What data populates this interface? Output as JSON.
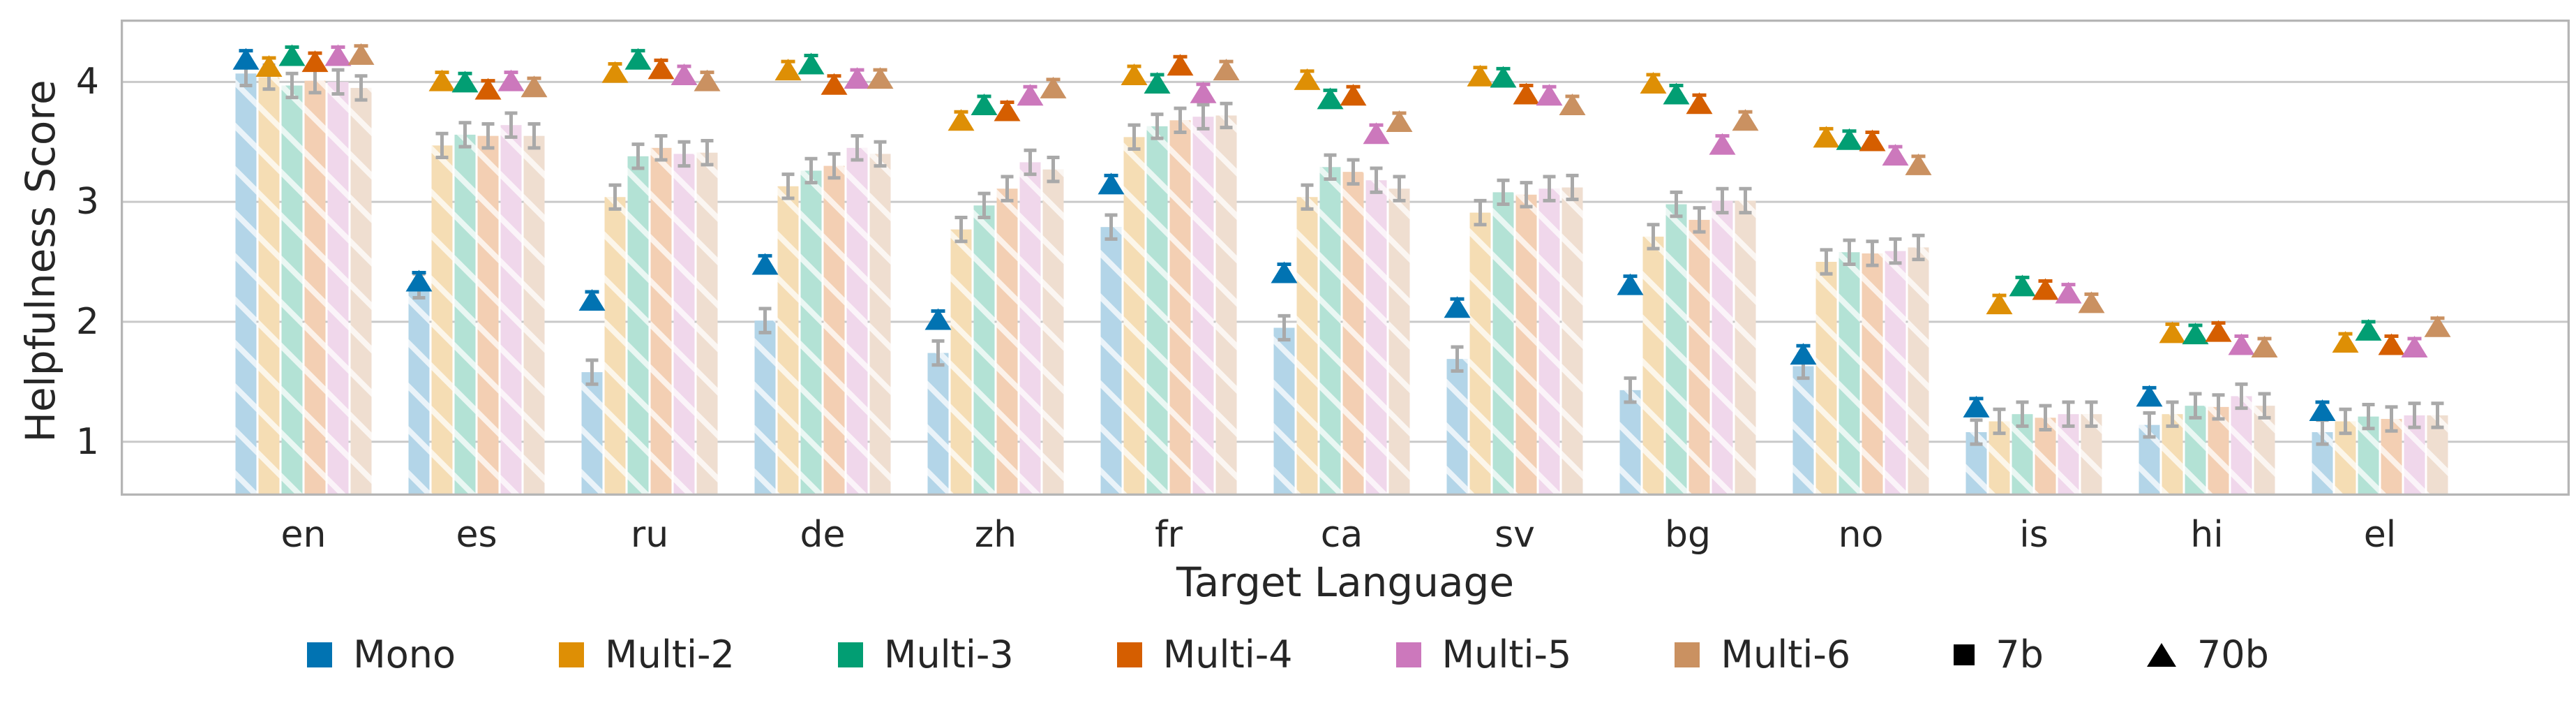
{
  "chart_data": {
    "type": "bar",
    "title": "",
    "xlabel": "Target Language",
    "ylabel": "Helpfulness Score",
    "categories": [
      "en",
      "es",
      "ru",
      "de",
      "zh",
      "fr",
      "ca",
      "sv",
      "bg",
      "no",
      "is",
      "hi",
      "el"
    ],
    "ylim": [
      0.55,
      4.52
    ],
    "yticks": [
      1,
      2,
      3,
      4
    ],
    "grid": true,
    "grid_color": "#c9c9c9",
    "spine_color": "#b5b5b5",
    "bar_error_color": "#a9a9a9",
    "bar_error": 0.1,
    "marker_error": 0.07,
    "hatch": {
      "pattern": "diagonal-white",
      "color": "#ffffff"
    },
    "legend_position": "bottom",
    "series": [
      {
        "name": "Mono",
        "color": "#0173b2",
        "bar_fill": "#b3d5e8",
        "bars_7b": [
          4.07,
          2.3,
          1.58,
          2.01,
          1.74,
          2.79,
          1.95,
          1.69,
          1.43,
          1.63,
          1.08,
          1.14,
          1.08
        ],
        "markers_70b": [
          4.19,
          2.34,
          2.18,
          2.48,
          2.02,
          3.15,
          2.41,
          2.12,
          2.31,
          1.73,
          1.29,
          1.38,
          1.26
        ]
      },
      {
        "name": "Multi-2",
        "color": "#de8f05",
        "bar_fill": "#f5ddb4",
        "bars_7b": [
          4.04,
          3.47,
          3.04,
          3.13,
          2.77,
          3.54,
          3.04,
          2.91,
          2.71,
          2.5,
          1.17,
          1.23,
          1.17
        ],
        "markers_70b": [
          4.13,
          4.01,
          4.08,
          4.1,
          3.68,
          4.06,
          4.02,
          4.05,
          3.99,
          3.54,
          2.15,
          1.91,
          1.83
        ]
      },
      {
        "name": "Multi-3",
        "color": "#029e73",
        "bar_fill": "#b3e2d5",
        "bars_7b": [
          3.97,
          3.56,
          3.38,
          3.26,
          2.97,
          3.63,
          3.29,
          3.08,
          2.98,
          2.58,
          1.23,
          1.3,
          1.21
        ],
        "markers_70b": [
          4.22,
          4.0,
          4.19,
          4.15,
          3.81,
          3.99,
          3.86,
          4.04,
          3.9,
          3.52,
          2.3,
          1.9,
          1.93
        ]
      },
      {
        "name": "Multi-4",
        "color": "#d55e00",
        "bar_fill": "#f3cfb3",
        "bars_7b": [
          4.01,
          3.55,
          3.45,
          3.3,
          3.11,
          3.68,
          3.25,
          3.06,
          2.85,
          2.57,
          1.2,
          1.29,
          1.19
        ],
        "markers_70b": [
          4.17,
          3.94,
          4.11,
          3.98,
          3.76,
          4.14,
          3.89,
          3.9,
          3.82,
          3.51,
          2.27,
          1.92,
          1.81
        ]
      },
      {
        "name": "Multi-5",
        "color": "#cc78bc",
        "bar_fill": "#f0d7eb",
        "bars_7b": [
          4.0,
          3.64,
          3.4,
          3.45,
          3.33,
          3.71,
          3.18,
          3.11,
          3.01,
          2.59,
          1.23,
          1.38,
          1.22
        ],
        "markers_70b": [
          4.22,
          4.01,
          4.06,
          4.03,
          3.89,
          3.91,
          3.57,
          3.89,
          3.48,
          3.39,
          2.24,
          1.81,
          1.79
        ]
      },
      {
        "name": "Multi-6",
        "color": "#ca9161",
        "bar_fill": "#efded0",
        "bars_7b": [
          3.95,
          3.55,
          3.41,
          3.4,
          3.27,
          3.72,
          3.11,
          3.12,
          3.01,
          2.62,
          1.23,
          1.3,
          1.22
        ],
        "markers_70b": [
          4.23,
          3.96,
          4.01,
          4.03,
          3.95,
          4.1,
          3.67,
          3.81,
          3.68,
          3.31,
          2.16,
          1.79,
          1.96
        ]
      }
    ],
    "size_legend": [
      {
        "label": "7b",
        "shape": "square"
      },
      {
        "label": "70b",
        "shape": "triangle-up"
      }
    ]
  }
}
